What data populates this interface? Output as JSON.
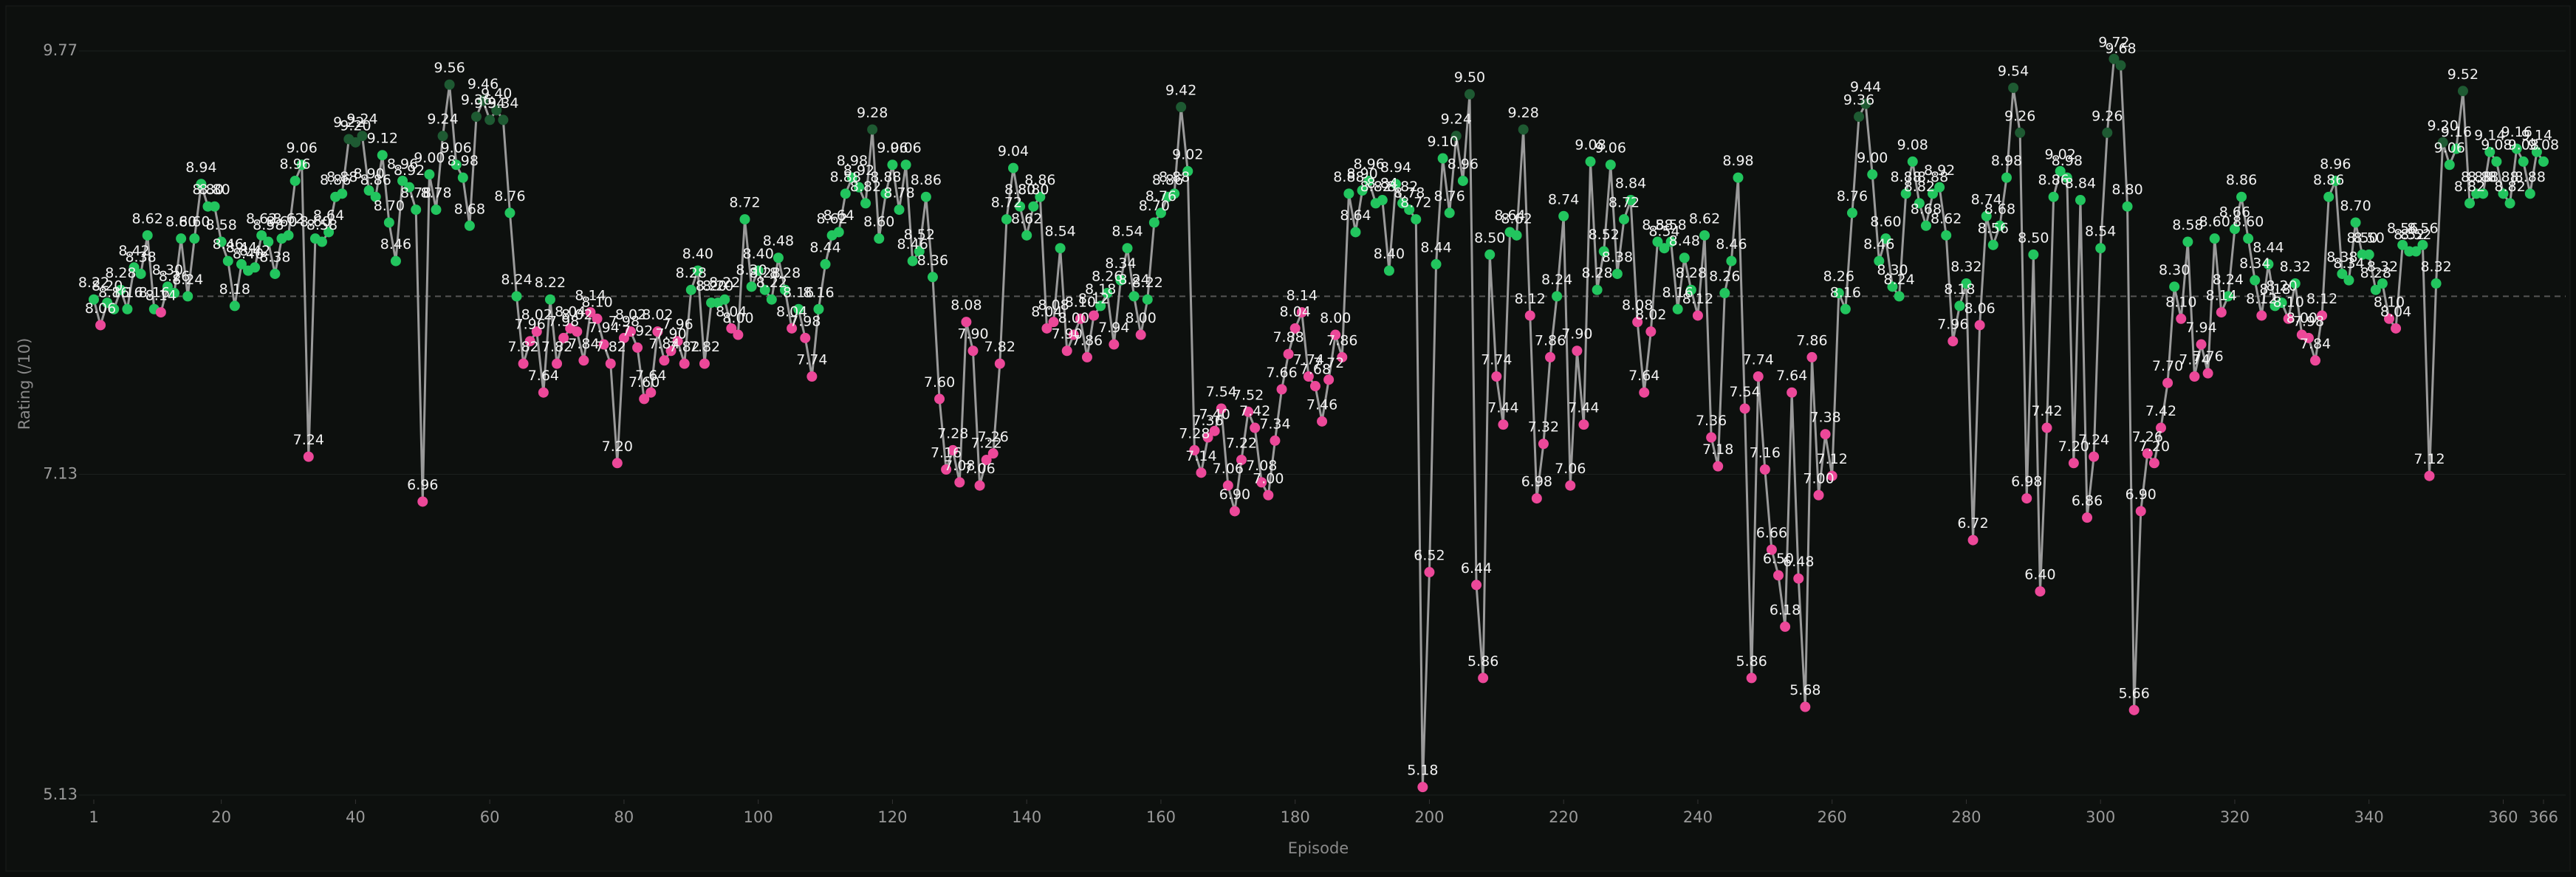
{
  "chart_data": {
    "type": "line",
    "y_label": "Rating (/10)",
    "x_label": "Episode",
    "xlim": [
      1,
      366
    ],
    "xticks": [
      1,
      20,
      40,
      60,
      80,
      100,
      120,
      140,
      160,
      180,
      200,
      220,
      240,
      260,
      280,
      300,
      320,
      340,
      360,
      366
    ],
    "ylim": [
      5.13,
      9.77
    ],
    "yticks": [
      {
        "value": 5.13,
        "label": "5.13"
      },
      {
        "value": 7.13,
        "label": "7.13"
      },
      {
        "value": 9.77,
        "label": "9.77"
      }
    ],
    "reference_line": 8.24,
    "line_color": "#9a9a9a",
    "reference_color": "#555555",
    "color_thresholds": [
      {
        "min": 9.2,
        "color": "#1e5a32"
      },
      {
        "min": 8.15,
        "color": "#22c55e"
      }
    ],
    "below_color": "#ec4899",
    "x": [
      1,
      2,
      3,
      4,
      5,
      6,
      7,
      8,
      9,
      10,
      11,
      12,
      13,
      14,
      15,
      16,
      17,
      18,
      19,
      20,
      21,
      22,
      23,
      24,
      25,
      26,
      27,
      28,
      29,
      30,
      31,
      32,
      33,
      34,
      35,
      36,
      37,
      38,
      39,
      40,
      41,
      42,
      43,
      44,
      45,
      46,
      47,
      48,
      49,
      50,
      51,
      52,
      53,
      54,
      55,
      56,
      57,
      58,
      59,
      60,
      61,
      62,
      63,
      64,
      65,
      66,
      67,
      68,
      69,
      70,
      71,
      72,
      73,
      74,
      75,
      76,
      77,
      78,
      79,
      80,
      81,
      82,
      83,
      84,
      85,
      86,
      87,
      88,
      89,
      90,
      91,
      92,
      93,
      94,
      95,
      96,
      97,
      98,
      99,
      100,
      101,
      102,
      103,
      104,
      105,
      106,
      107,
      108,
      109,
      110,
      111,
      112,
      113,
      114,
      115,
      116,
      117,
      118,
      119,
      120,
      121,
      122,
      123,
      124,
      125,
      126,
      127,
      128,
      129,
      130,
      131,
      132,
      133,
      134,
      135,
      136,
      137,
      138,
      139,
      140,
      141,
      142,
      143,
      144,
      145,
      146,
      147,
      148,
      149,
      150,
      151,
      152,
      153,
      154,
      155,
      156,
      157,
      158,
      159,
      160,
      161,
      162,
      163,
      164,
      165,
      166,
      167,
      168,
      169,
      170,
      171,
      172,
      173,
      174,
      175,
      176,
      177,
      178,
      179,
      180,
      181,
      182,
      183,
      184,
      185,
      186,
      187,
      188,
      189,
      190,
      191,
      192,
      193,
      194,
      195,
      196,
      197,
      198,
      199,
      200,
      201,
      202,
      203,
      204,
      205,
      206,
      207,
      208,
      209,
      210,
      211,
      212,
      213,
      214,
      215,
      216,
      217,
      218,
      219,
      220,
      221,
      222,
      223,
      224,
      225,
      226,
      227,
      228,
      229,
      230,
      231,
      232,
      233,
      234,
      235,
      236,
      237,
      238,
      239,
      240,
      241,
      242,
      243,
      244,
      245,
      246,
      247,
      248,
      249,
      250,
      251,
      252,
      253,
      254,
      255,
      256,
      257,
      258,
      259,
      260,
      261,
      262,
      263,
      264,
      265,
      266,
      267,
      268,
      269,
      270,
      271,
      272,
      273,
      274,
      275,
      276,
      277,
      278,
      279,
      280,
      281,
      282,
      283,
      284,
      285,
      286,
      287,
      288,
      289,
      290,
      291,
      292,
      293,
      294,
      295,
      296,
      297,
      298,
      299,
      300,
      301,
      302,
      303,
      304,
      305,
      306,
      307,
      308,
      309,
      310,
      311,
      312,
      313,
      314,
      315,
      316,
      317,
      318,
      319,
      320,
      321,
      322,
      323,
      324,
      325,
      326,
      327,
      328,
      329,
      330,
      331,
      332,
      333,
      334,
      335,
      336,
      337,
      338,
      339,
      340,
      341,
      342,
      343,
      344,
      345,
      346,
      347,
      348,
      349,
      350,
      351,
      352,
      353,
      354,
      355,
      356,
      357,
      358,
      359,
      360,
      361,
      362,
      363,
      364,
      365,
      366
    ],
    "values": [
      8.22,
      8.06,
      8.2,
      8.16,
      8.28,
      8.16,
      8.42,
      8.38,
      8.62,
      8.16,
      8.14,
      8.3,
      8.26,
      8.6,
      8.24,
      8.6,
      8.94,
      8.8,
      8.8,
      8.58,
      8.46,
      8.18,
      8.44,
      8.4,
      8.42,
      8.62,
      8.58,
      8.38,
      8.6,
      8.62,
      8.96,
      9.06,
      7.24,
      8.6,
      8.58,
      8.64,
      8.86,
      8.88,
      9.22,
      9.2,
      9.24,
      8.9,
      8.86,
      9.12,
      8.7,
      8.46,
      8.96,
      8.92,
      8.78,
      6.96,
      9,
      8.78,
      9.24,
      9.56,
      9.06,
      8.98,
      8.68,
      9.36,
      9.46,
      9.34,
      9.4,
      9.34,
      8.76,
      8.24,
      7.82,
      7.96,
      8.02,
      7.64,
      8.22,
      7.82,
      7.98,
      8.04,
      8.02,
      7.84,
      8.14,
      8.1,
      7.94,
      7.82,
      7.2,
      7.98,
      8.02,
      7.92,
      7.6,
      7.64,
      8.02,
      7.84,
      7.9,
      7.96,
      7.82,
      8.28,
      8.4,
      7.82,
      8.2,
      8.2,
      8.22,
      8.04,
      8,
      8.72,
      8.3,
      8.4,
      8.28,
      8.22,
      8.48,
      8.28,
      8.04,
      8.16,
      7.98,
      7.74,
      8.16,
      8.44,
      8.62,
      8.64,
      8.88,
      8.98,
      8.92,
      8.82,
      9.28,
      8.6,
      8.88,
      9.06,
      8.78,
      9.06,
      8.46,
      8.52,
      8.86,
      8.36,
      7.6,
      7.16,
      7.28,
      7.08,
      8.08,
      7.9,
      7.06,
      7.22,
      7.26,
      7.82,
      8.72,
      9.04,
      8.8,
      8.62,
      8.8,
      8.86,
      8.04,
      8.08,
      8.54,
      7.9,
      8,
      8.1,
      7.86,
      8.12,
      8.18,
      8.26,
      7.94,
      8.34,
      8.54,
      8.24,
      8,
      8.22,
      8.7,
      8.76,
      8.86,
      8.88,
      9.42,
      9.02,
      7.28,
      7.14,
      7.36,
      7.4,
      7.54,
      7.06,
      6.9,
      7.22,
      7.52,
      7.42,
      7.08,
      7,
      7.34,
      7.66,
      7.88,
      8.04,
      8.14,
      7.74,
      7.68,
      7.46,
      7.72,
      8,
      7.86,
      8.88,
      8.64,
      8.9,
      8.96,
      8.82,
      8.84,
      8.4,
      8.94,
      8.82,
      8.78,
      8.72,
      5.18,
      6.52,
      8.44,
      9.1,
      8.76,
      9.24,
      8.96,
      9.5,
      6.44,
      5.86,
      8.5,
      7.74,
      7.44,
      8.64,
      8.62,
      9.28,
      8.12,
      6.98,
      7.32,
      7.86,
      8.24,
      8.74,
      7.06,
      7.9,
      7.44,
      9.08,
      8.28,
      8.52,
      9.06,
      8.38,
      8.72,
      8.84,
      8.08,
      7.64,
      8.02,
      8.58,
      8.54,
      8.58,
      8.16,
      8.48,
      8.28,
      8.12,
      8.62,
      7.36,
      7.18,
      8.26,
      8.46,
      8.98,
      7.54,
      5.86,
      7.74,
      7.16,
      6.66,
      6.5,
      6.18,
      7.64,
      6.48,
      5.68,
      7.86,
      7,
      7.38,
      7.12,
      8.26,
      8.16,
      8.76,
      9.36,
      9.44,
      9,
      8.46,
      8.6,
      8.3,
      8.24,
      8.88,
      9.08,
      8.82,
      8.68,
      8.88,
      8.92,
      8.62,
      7.96,
      8.18,
      8.32,
      6.72,
      8.06,
      8.74,
      8.56,
      8.68,
      8.98,
      9.54,
      9.26,
      6.98,
      8.5,
      6.4,
      7.42,
      8.86,
      9.02,
      8.98,
      7.2,
      8.84,
      6.86,
      7.24,
      8.54,
      9.26,
      9.72,
      9.68,
      8.8,
      5.66,
      6.9,
      7.26,
      7.2,
      7.42,
      7.7,
      8.3,
      8.1,
      8.58,
      7.74,
      7.94,
      7.76,
      8.6,
      8.14,
      8.24,
      8.66,
      8.86,
      8.6,
      8.34,
      8.12,
      8.44,
      8.18,
      8.2,
      8.1,
      8.32,
      8,
      7.98,
      7.84,
      8.12,
      8.86,
      8.96,
      8.38,
      8.34,
      8.7,
      8.5,
      8.5,
      8.28,
      8.32,
      8.1,
      8.04,
      8.56,
      8.52,
      8.52,
      8.56,
      7.12,
      8.32,
      9.2,
      9.06,
      9.16,
      9.52,
      8.82,
      8.88,
      8.88,
      9.14,
      9.08,
      8.88,
      8.82,
      9.16,
      9.08,
      8.88,
      9.14,
      9.08
    ],
    "value_labels": [
      "8.22",
      "8.06",
      "8.20",
      "8.16",
      "8.28",
      "8.16",
      "8.42",
      "8.38",
      "8.62",
      "8.16",
      "8.14",
      "8.30",
      "8.26",
      "8.60",
      "8.24",
      "8.60",
      "8.94",
      "8.80",
      "8.80",
      "8.58",
      "8.46",
      "8.18",
      "8.44",
      "8.40",
      "8.42",
      "8.62",
      "8.58",
      "8.38",
      "8.60",
      "8.62",
      "8.96",
      "9.06",
      "7.24",
      "8.60",
      "8.58",
      "8.64",
      "8.86",
      "8.88",
      "9.22",
      "9.20",
      "9.24",
      "8.90",
      "8.86",
      "9.12",
      "8.70",
      "8.46",
      "8.96",
      "8.92",
      "8.78",
      "6.96",
      "9.00",
      "8.78",
      "9.24",
      "9.56",
      "9.06",
      "8.98",
      "8.68",
      "9.36",
      "9.46",
      "9.34",
      "9.40",
      "9.34",
      "8.76",
      "8.24",
      "7.82",
      "7.96",
      "8.02",
      "7.64",
      "8.22",
      "7.82",
      "7.98",
      "8.04",
      "8.02",
      "7.84",
      "8.14",
      "8.10",
      "7.94",
      "7.82",
      "7.20",
      "7.98",
      "8.02",
      "7.92",
      "7.60",
      "7.64",
      "8.02",
      "7.84",
      "7.90",
      "7.96",
      "7.82",
      "8.28",
      "8.40",
      "7.82",
      "8.20",
      "8.20",
      "8.22",
      "8.04",
      "8.00",
      "8.72",
      "8.30",
      "8.40",
      "8.28",
      "8.22",
      "8.48",
      "8.28",
      "8.04",
      "8.16",
      "7.98",
      "7.74",
      "8.16",
      "8.44",
      "8.62",
      "8.64",
      "8.88",
      "8.98",
      "8.92",
      "8.82",
      "9.28",
      "8.60",
      "8.88",
      "9.06",
      "8.78",
      "9.06",
      "8.46",
      "8.52",
      "8.86",
      "8.36",
      "7.60",
      "7.16",
      "7.28",
      "7.08",
      "8.08",
      "7.90",
      "7.06",
      "7.22",
      "7.26",
      "7.82",
      "8.72",
      "9.04",
      "8.80",
      "8.62",
      "8.80",
      "8.86",
      "8.04",
      "8.08",
      "8.54",
      "7.90",
      "8.00",
      "8.10",
      "7.86",
      "8.12",
      "8.18",
      "8.26",
      "7.94",
      "8.34",
      "8.54",
      "8.24",
      "8.00",
      "8.22",
      "8.70",
      "8.76",
      "8.86",
      "8.88",
      "9.42",
      "9.02",
      "7.28",
      "7.14",
      "7.36",
      "7.40",
      "7.54",
      "7.06",
      "6.90",
      "7.22",
      "7.52",
      "7.42",
      "7.08",
      "7.00",
      "7.34",
      "7.66",
      "7.88",
      "8.04",
      "8.14",
      "7.74",
      "7.68",
      "7.46",
      "7.72",
      "8.00",
      "7.86",
      "8.88",
      "8.64",
      "8.90",
      "8.96",
      "8.82",
      "8.84",
      "8.40",
      "8.94",
      "8.82",
      "8.78",
      "8.72",
      "5.18",
      "6.52",
      "8.44",
      "9.10",
      "8.76",
      "9.24",
      "8.96",
      "9.50",
      "6.44",
      "5.86",
      "8.50",
      "7.74",
      "7.44",
      "8.64",
      "8.62",
      "9.28",
      "8.12",
      "6.98",
      "7.32",
      "7.86",
      "8.24",
      "8.74",
      "7.06",
      "7.90",
      "7.44",
      "9.08",
      "8.28",
      "8.52",
      "9.06",
      "8.38",
      "8.72",
      "8.84",
      "8.08",
      "7.64",
      "8.02",
      "8.58",
      "8.54",
      "8.58",
      "8.16",
      "8.48",
      "8.28",
      "8.12",
      "8.62",
      "7.36",
      "7.18",
      "8.26",
      "8.46",
      "8.98",
      "7.54",
      "5.86",
      "7.74",
      "7.16",
      "6.66",
      "6.50",
      "6.18",
      "7.64",
      "6.48",
      "5.68",
      "7.86",
      "7.00",
      "7.38",
      "7.12",
      "8.26",
      "8.16",
      "8.76",
      "9.36",
      "9.44",
      "9.00",
      "8.46",
      "8.60",
      "8.30",
      "8.24",
      "8.88",
      "9.08",
      "8.82",
      "8.68",
      "8.88",
      "8.92",
      "8.62",
      "7.96",
      "8.18",
      "8.32",
      "6.72",
      "8.06",
      "8.74",
      "8.56",
      "8.68",
      "8.98",
      "9.54",
      "9.26",
      "6.98",
      "8.50",
      "6.40",
      "7.42",
      "8.86",
      "9.02",
      "8.98",
      "7.20",
      "8.84",
      "6.86",
      "7.24",
      "8.54",
      "9.26",
      "9.72",
      "9.68",
      "8.80",
      "5.66",
      "6.90",
      "7.26",
      "7.20",
      "7.42",
      "7.70",
      "8.30",
      "8.10",
      "8.58",
      "7.74",
      "7.94",
      "7.76",
      "8.60",
      "8.14",
      "8.24",
      "8.66",
      "8.86",
      "8.60",
      "8.34",
      "8.12",
      "8.44",
      "8.18",
      "8.20",
      "8.10",
      "8.32",
      "8.00",
      "7.98",
      "7.84",
      "8.12",
      "8.86",
      "8.96",
      "8.38",
      "8.34",
      "8.70",
      "8.50",
      "8.50",
      "8.28",
      "8.32",
      "8.10",
      "8.04",
      "8.56",
      "8.52",
      "8.52",
      "8.56",
      "7.12",
      "8.32",
      "9.20",
      "9.06",
      "9.16",
      "9.52",
      "8.82",
      "8.88",
      "8.88",
      "9.14",
      "9.08",
      "8.88",
      "8.82",
      "9.16",
      "9.08",
      "8.88",
      "9.14",
      "9.08"
    ]
  }
}
